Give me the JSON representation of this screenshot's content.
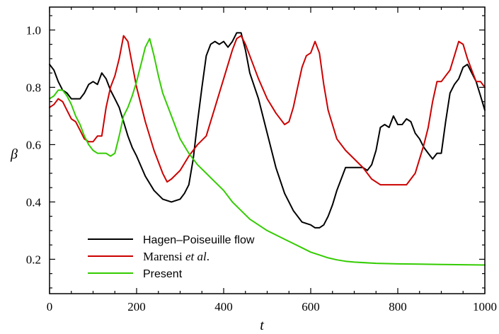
{
  "chart_data": {
    "type": "line",
    "xlabel": "t",
    "ylabel": "β",
    "xlim": [
      0,
      1000
    ],
    "ylim": [
      0.08,
      1.08
    ],
    "xticks": [
      0,
      200,
      400,
      600,
      800,
      1000
    ],
    "yticks": [
      0.2,
      0.4,
      0.6,
      0.8,
      1.0
    ],
    "ytick_labels": [
      "0.2",
      "0.4",
      "0.6",
      "0.8",
      "1.0"
    ],
    "grid": false,
    "legend_position": "bottom-left",
    "series": [
      {
        "name": "Hagen–Poiseuille flow",
        "color": "#000000",
        "x": [
          0,
          10,
          20,
          30,
          40,
          50,
          60,
          70,
          80,
          90,
          100,
          110,
          120,
          130,
          140,
          150,
          160,
          170,
          180,
          190,
          200,
          220,
          240,
          260,
          280,
          300,
          310,
          320,
          330,
          340,
          350,
          360,
          370,
          380,
          390,
          400,
          410,
          420,
          430,
          440,
          450,
          460,
          480,
          500,
          520,
          540,
          560,
          580,
          600,
          610,
          620,
          630,
          640,
          650,
          660,
          680,
          700,
          720,
          730,
          740,
          750,
          760,
          770,
          780,
          790,
          800,
          810,
          820,
          830,
          840,
          850,
          860,
          870,
          880,
          890,
          900,
          910,
          920,
          930,
          940,
          950,
          960,
          970,
          980,
          990,
          1000
        ],
        "y": [
          0.88,
          0.86,
          0.82,
          0.79,
          0.78,
          0.76,
          0.76,
          0.76,
          0.78,
          0.81,
          0.82,
          0.81,
          0.85,
          0.83,
          0.79,
          0.76,
          0.73,
          0.68,
          0.63,
          0.59,
          0.56,
          0.49,
          0.44,
          0.41,
          0.4,
          0.41,
          0.43,
          0.46,
          0.55,
          0.68,
          0.8,
          0.91,
          0.95,
          0.96,
          0.95,
          0.96,
          0.94,
          0.96,
          0.99,
          0.99,
          0.93,
          0.85,
          0.76,
          0.64,
          0.52,
          0.43,
          0.37,
          0.33,
          0.32,
          0.31,
          0.31,
          0.32,
          0.35,
          0.39,
          0.44,
          0.52,
          0.52,
          0.52,
          0.51,
          0.53,
          0.58,
          0.66,
          0.67,
          0.66,
          0.7,
          0.67,
          0.67,
          0.69,
          0.68,
          0.64,
          0.62,
          0.59,
          0.57,
          0.55,
          0.57,
          0.57,
          0.68,
          0.78,
          0.81,
          0.83,
          0.87,
          0.88,
          0.85,
          0.82,
          0.77,
          0.72
        ]
      },
      {
        "name": "Marensi et al.",
        "color": "#cc0000",
        "x": [
          0,
          10,
          20,
          30,
          40,
          50,
          60,
          70,
          80,
          90,
          100,
          110,
          120,
          130,
          140,
          150,
          160,
          170,
          180,
          190,
          200,
          210,
          220,
          240,
          260,
          270,
          280,
          300,
          320,
          340,
          360,
          380,
          400,
          420,
          430,
          440,
          450,
          460,
          480,
          500,
          520,
          540,
          550,
          560,
          570,
          580,
          590,
          600,
          610,
          620,
          630,
          640,
          660,
          680,
          700,
          720,
          740,
          760,
          780,
          800,
          820,
          840,
          850,
          860,
          870,
          880,
          890,
          900,
          910,
          920,
          930,
          940,
          950,
          960,
          970,
          980,
          990,
          1000
        ],
        "y": [
          0.73,
          0.74,
          0.76,
          0.75,
          0.72,
          0.69,
          0.68,
          0.65,
          0.62,
          0.61,
          0.61,
          0.63,
          0.63,
          0.73,
          0.8,
          0.84,
          0.9,
          0.98,
          0.96,
          0.88,
          0.8,
          0.74,
          0.68,
          0.58,
          0.5,
          0.47,
          0.48,
          0.51,
          0.56,
          0.6,
          0.63,
          0.73,
          0.83,
          0.93,
          0.97,
          0.98,
          0.95,
          0.91,
          0.83,
          0.76,
          0.71,
          0.67,
          0.68,
          0.73,
          0.8,
          0.87,
          0.91,
          0.92,
          0.96,
          0.92,
          0.81,
          0.72,
          0.62,
          0.58,
          0.55,
          0.52,
          0.48,
          0.46,
          0.46,
          0.46,
          0.46,
          0.5,
          0.55,
          0.6,
          0.66,
          0.75,
          0.82,
          0.82,
          0.84,
          0.86,
          0.91,
          0.96,
          0.95,
          0.9,
          0.86,
          0.82,
          0.82,
          0.8
        ]
      },
      {
        "name": "Present",
        "color": "#33cc00",
        "x": [
          0,
          10,
          20,
          30,
          40,
          50,
          60,
          70,
          80,
          90,
          100,
          110,
          120,
          130,
          140,
          150,
          160,
          170,
          180,
          190,
          200,
          210,
          220,
          230,
          240,
          250,
          260,
          280,
          300,
          320,
          340,
          360,
          380,
          400,
          420,
          440,
          460,
          480,
          500,
          520,
          540,
          560,
          580,
          600,
          620,
          640,
          660,
          680,
          700,
          750,
          800,
          850,
          900,
          950,
          1000
        ],
        "y": [
          0.76,
          0.77,
          0.79,
          0.79,
          0.77,
          0.74,
          0.7,
          0.67,
          0.63,
          0.6,
          0.58,
          0.57,
          0.57,
          0.57,
          0.56,
          0.57,
          0.63,
          0.7,
          0.73,
          0.77,
          0.82,
          0.88,
          0.94,
          0.97,
          0.91,
          0.84,
          0.78,
          0.7,
          0.62,
          0.57,
          0.53,
          0.5,
          0.47,
          0.44,
          0.4,
          0.37,
          0.34,
          0.32,
          0.3,
          0.285,
          0.27,
          0.255,
          0.24,
          0.225,
          0.215,
          0.205,
          0.198,
          0.193,
          0.19,
          0.186,
          0.184,
          0.183,
          0.182,
          0.181,
          0.18
        ]
      }
    ]
  },
  "legend": {
    "hp": "Hagen–Poiseuille flow",
    "marensi_name": "Marensi",
    "marensi_etal": "et al",
    "marensi_dot": ".",
    "present": "Present"
  },
  "colors": {
    "hp": "#000000",
    "marensi": "#cc0000",
    "present": "#33cc00"
  }
}
